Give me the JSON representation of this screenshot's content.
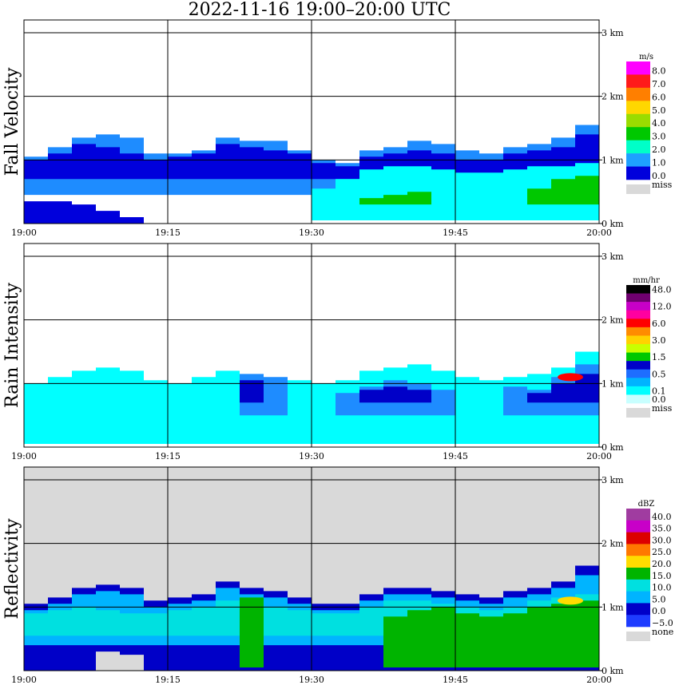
{
  "title": "2022-11-16   19:00–20:00 UTC",
  "time_ticks": [
    "19:00",
    "19:15",
    "19:30",
    "19:45",
    "20:00"
  ],
  "height_ticks": [
    "0 km",
    "1 km",
    "2 km",
    "3 km"
  ],
  "colors": {
    "background": "#ffffff",
    "grid": "#000000",
    "missing": "#d9d9d9"
  },
  "chart_data": [
    {
      "type": "heatmap",
      "title": "Fall Velocity",
      "x_range": [
        "19:00",
        "20:00"
      ],
      "y_range_km": [
        0,
        3.2
      ],
      "xlabel": "",
      "ylabel": "",
      "grid": true,
      "panel_background": "#ffffff",
      "legend": {
        "unit": "m/s",
        "entries": [
          {
            "label": "8.0",
            "color": "#ff00ff"
          },
          {
            "label": "7.0",
            "color": "#ff1a1a"
          },
          {
            "label": "6.0",
            "color": "#ff7f00"
          },
          {
            "label": "5.0",
            "color": "#ffd700"
          },
          {
            "label": "4.0",
            "color": "#9adc00"
          },
          {
            "label": "3.0",
            "color": "#00c800"
          },
          {
            "label": "2.0",
            "color": "#00ffc8"
          },
          {
            "label": "1.0",
            "color": "#1ea0ff"
          },
          {
            "label": "0.0",
            "color": "#0000dc"
          },
          {
            "label": "miss",
            "color": "#d9d9d9"
          }
        ]
      },
      "layers": [
        {
          "color": "#1e8cff",
          "base_km": 0.45,
          "top_km": [
            1.05,
            1.2,
            1.35,
            1.4,
            1.35,
            1.1,
            1.1,
            1.15,
            1.35,
            1.3,
            1.3,
            1.15,
            1.0,
            0.95,
            1.15,
            1.2,
            1.3,
            1.25,
            1.15,
            1.1,
            1.2,
            1.25,
            1.35,
            1.55
          ]
        },
        {
          "color": "#0000dc",
          "base_km": 0.7,
          "top_km": [
            1.0,
            1.1,
            1.25,
            1.2,
            1.1,
            1.0,
            1.05,
            1.1,
            1.25,
            1.2,
            1.15,
            1.1,
            0.95,
            0.9,
            1.05,
            1.1,
            1.15,
            1.1,
            1.0,
            1.0,
            1.1,
            1.15,
            1.2,
            1.4
          ]
        },
        {
          "color": "#00ffff",
          "base_km": 0.05,
          "top_km": [
            0,
            0,
            0,
            0,
            0,
            0,
            0,
            0,
            0,
            0,
            0,
            0,
            0.55,
            0.7,
            0.85,
            0.9,
            0.9,
            0.85,
            0.8,
            0.8,
            0.85,
            0.9,
            0.9,
            0.95
          ]
        },
        {
          "color": "#00c800",
          "base_km": 0.3,
          "top_km": [
            0,
            0,
            0,
            0,
            0,
            0,
            0,
            0,
            0,
            0,
            0,
            0,
            0,
            0,
            0.4,
            0.45,
            0.5,
            0,
            0,
            0,
            0,
            0.55,
            0.7,
            0.75
          ]
        },
        {
          "color": "#0000dc",
          "base_km": 0.0,
          "top_km": [
            0.35,
            0.35,
            0.3,
            0.2,
            0.1,
            0,
            0,
            0,
            0,
            0,
            0,
            0,
            0,
            0,
            0,
            0,
            0,
            0,
            0,
            0,
            0,
            0,
            0,
            0
          ]
        }
      ]
    },
    {
      "type": "heatmap",
      "title": "Rain Intensity",
      "x_range": [
        "19:00",
        "20:00"
      ],
      "y_range_km": [
        0,
        3.2
      ],
      "xlabel": "",
      "ylabel": "",
      "grid": true,
      "panel_background": "#ffffff",
      "legend": {
        "unit": "mm/hr",
        "entries": [
          {
            "label": "48.0",
            "color": "#000000"
          },
          {
            "label": "",
            "color": "#6e006e"
          },
          {
            "label": "12.0",
            "color": "#c800c8"
          },
          {
            "label": "",
            "color": "#ff00a0"
          },
          {
            "label": "6.0",
            "color": "#ff0000"
          },
          {
            "label": "",
            "color": "#ff8c00"
          },
          {
            "label": "3.0",
            "color": "#ffd200"
          },
          {
            "label": "",
            "color": "#c8ff00"
          },
          {
            "label": "1.5",
            "color": "#00c800"
          },
          {
            "label": "",
            "color": "#0000c8"
          },
          {
            "label": "0.5",
            "color": "#1e6eff"
          },
          {
            "label": "",
            "color": "#00b4ff"
          },
          {
            "label": "0.1",
            "color": "#00ffff"
          },
          {
            "label": "0.0",
            "color": "#c8ffff"
          },
          {
            "label": "miss",
            "color": "#d9d9d9"
          }
        ]
      },
      "layers": [
        {
          "color": "#00ffff",
          "base_km": 0.05,
          "top_km": [
            1.0,
            1.1,
            1.2,
            1.25,
            1.2,
            1.05,
            1.0,
            1.1,
            1.2,
            1.1,
            1.05,
            1.05,
            1.0,
            1.05,
            1.2,
            1.25,
            1.3,
            1.2,
            1.1,
            1.05,
            1.1,
            1.15,
            1.25,
            1.5
          ]
        },
        {
          "color": "#1e8cff",
          "base_km": 0.5,
          "top_km": [
            0,
            0,
            0,
            0,
            0,
            0,
            0,
            0,
            0,
            1.15,
            1.1,
            0,
            0,
            0.85,
            0.95,
            1.05,
            1.0,
            0.9,
            0,
            0,
            0.95,
            0.9,
            1.1,
            1.3
          ]
        },
        {
          "color": "#0000c8",
          "base_km": 0.7,
          "top_km": [
            0,
            0,
            0,
            0,
            0,
            0,
            0,
            0,
            0,
            1.05,
            0,
            0,
            0,
            0,
            0.9,
            0.95,
            0.9,
            0,
            0,
            0,
            0,
            0.85,
            1.0,
            1.15
          ]
        }
      ],
      "hotspots": [
        {
          "time": "19:57",
          "height_km": 1.1,
          "color": "#ff0000"
        }
      ]
    },
    {
      "type": "heatmap",
      "title": "Reflectivity",
      "x_range": [
        "19:00",
        "20:00"
      ],
      "y_range_km": [
        0,
        3.2
      ],
      "xlabel": "",
      "ylabel": "",
      "grid": true,
      "panel_background": "#d9d9d9",
      "legend": {
        "unit": "dBZ",
        "entries": [
          {
            "label": "40.0",
            "color": "#a03ca0"
          },
          {
            "label": "35.0",
            "color": "#c800c8"
          },
          {
            "label": "30.0",
            "color": "#dc0000"
          },
          {
            "label": "25.0",
            "color": "#ff7800"
          },
          {
            "label": "20.0",
            "color": "#ffdc00"
          },
          {
            "label": "15.0",
            "color": "#00b400"
          },
          {
            "label": "10.0",
            "color": "#00e0e0"
          },
          {
            "label": "5.0",
            "color": "#00b4ff"
          },
          {
            "label": "0.0",
            "color": "#0000c8"
          },
          {
            "label": "−5.0",
            "color": "#1e3cff"
          },
          {
            "label": "none",
            "color": "#d9d9d9"
          }
        ]
      },
      "layers": [
        {
          "color": "#0000c8",
          "base_km": 0.0,
          "top_km": [
            1.05,
            1.15,
            1.3,
            1.35,
            1.3,
            1.1,
            1.15,
            1.2,
            1.4,
            1.3,
            1.25,
            1.15,
            1.05,
            1.05,
            1.2,
            1.3,
            1.3,
            1.25,
            1.2,
            1.15,
            1.25,
            1.3,
            1.4,
            1.65
          ]
        },
        {
          "color": "#00b4ff",
          "base_km": 0.4,
          "top_km": [
            0.95,
            1.05,
            1.2,
            1.25,
            1.2,
            1.0,
            1.05,
            1.1,
            1.3,
            1.2,
            1.15,
            1.05,
            0.95,
            0.95,
            1.1,
            1.2,
            1.2,
            1.15,
            1.1,
            1.05,
            1.15,
            1.2,
            1.3,
            1.5
          ]
        },
        {
          "color": "#00e0e0",
          "base_km": 0.55,
          "top_km": [
            0.9,
            0.95,
            1.0,
            0.95,
            0.9,
            0.9,
            0.95,
            1.0,
            1.1,
            1.05,
            1.0,
            0.95,
            0.9,
            0.9,
            1.0,
            1.1,
            1.1,
            1.05,
            1.0,
            0.95,
            1.0,
            1.1,
            1.15,
            1.2
          ]
        },
        {
          "color": "#00b400",
          "base_km": 0.05,
          "top_km": [
            0,
            0,
            0,
            0,
            0,
            0,
            0,
            0,
            0,
            1.15,
            0,
            0,
            0,
            0,
            0,
            0.85,
            0.95,
            1.0,
            0.9,
            0.85,
            0.9,
            1.0,
            1.05,
            1.1
          ]
        },
        {
          "color": "#d9d9d9",
          "base_km": 0.0,
          "top_km": [
            0,
            0,
            0,
            0.3,
            0.25,
            0,
            0,
            0,
            0,
            0,
            0,
            0,
            0,
            0,
            0,
            0,
            0,
            0,
            0,
            0,
            0,
            0,
            0,
            0
          ]
        }
      ],
      "hotspots": [
        {
          "time": "19:57",
          "height_km": 1.1,
          "color": "#ffdc00"
        }
      ]
    }
  ]
}
